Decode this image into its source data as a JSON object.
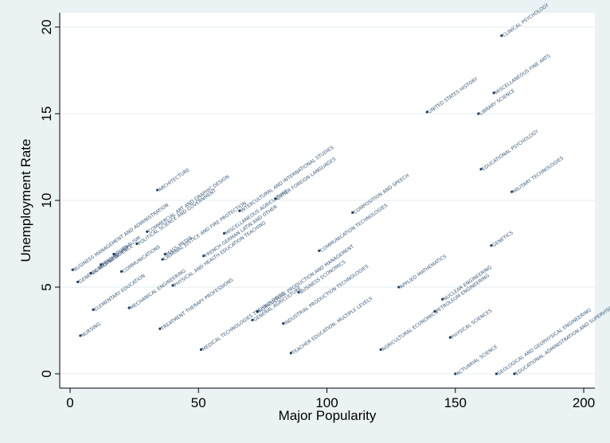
{
  "chart_data": {
    "type": "scatter",
    "title": "",
    "xlabel": "Major Popularity",
    "ylabel": "Unemployment Rate",
    "xlim": [
      0,
      200
    ],
    "ylim": [
      0,
      20
    ],
    "xticks": [
      "0",
      "50",
      "100",
      "150",
      "200"
    ],
    "yticks": [
      "0",
      "5",
      "10",
      "15",
      "20"
    ],
    "grid": true,
    "legend": "none",
    "point_color": "#1f3d5c",
    "background_outer": "#eaf2f3",
    "background_plot": "#ffffff",
    "points": [
      {
        "x": 1,
        "y": 6.0,
        "label": "BUSINESS MANAGEMENT AND ADMINISTRATION"
      },
      {
        "x": 3,
        "y": 5.3,
        "label": "GENERAL BUSINESS"
      },
      {
        "x": 4,
        "y": 2.2,
        "label": "NURSING"
      },
      {
        "x": 8,
        "y": 5.8,
        "label": "COMPUTER SCIENCE"
      },
      {
        "x": 9,
        "y": 3.7,
        "label": "ELEMENTARY EDUCATION"
      },
      {
        "x": 12,
        "y": 6.3,
        "label": "PSYCHOLOGY"
      },
      {
        "x": 17,
        "y": 6.9,
        "label": "JOURNALISM"
      },
      {
        "x": 20,
        "y": 5.9,
        "label": "COMMUNICATIONS"
      },
      {
        "x": 23,
        "y": 3.8,
        "label": "MECHANICAL ENGINEERING"
      },
      {
        "x": 26,
        "y": 7.5,
        "label": "POLITICAL SCIENCE AND GOVERNMENT"
      },
      {
        "x": 30,
        "y": 8.2,
        "label": "COMMERCIAL ART AND GRAPHIC DESIGN"
      },
      {
        "x": 34,
        "y": 10.6,
        "label": "ARCHITECTURE"
      },
      {
        "x": 35,
        "y": 2.6,
        "label": "TREATMENT THERAPY PROFESSIONS"
      },
      {
        "x": 36,
        "y": 6.6,
        "label": "CRIMINAL JUSTICE AND FIRE PROTECTION"
      },
      {
        "x": 37,
        "y": 6.9,
        "label": "MASS MEDIA"
      },
      {
        "x": 40,
        "y": 5.1,
        "label": "PHYSICAL AND HEALTH EDUCATION TEACHING"
      },
      {
        "x": 51,
        "y": 1.4,
        "label": "MEDICAL TECHNOLOGIES TECHNOLOGIES"
      },
      {
        "x": 52,
        "y": 6.8,
        "label": "FRENCH GERMAN LATIN AND OTHER"
      },
      {
        "x": 60,
        "y": 8.1,
        "label": "MISCELLANEOUS AGRICULTURE"
      },
      {
        "x": 66,
        "y": 9.4,
        "label": "INTERCULTURAL AND INTERNATIONAL STUDIES"
      },
      {
        "x": 71,
        "y": 3.1,
        "label": "GENERAL AGRICULTURE"
      },
      {
        "x": 73,
        "y": 3.6,
        "label": "AGRICULTURE PRODUCTION AND MANAGEMENT"
      },
      {
        "x": 80,
        "y": 10.1,
        "label": "OTHER FOREIGN LANGUAGES"
      },
      {
        "x": 83,
        "y": 2.9,
        "label": "INDUSTRIAL PRODUCTION TECHNOLOGIES"
      },
      {
        "x": 86,
        "y": 1.2,
        "label": "TEACHER EDUCATION: MULTIPLE LEVELS"
      },
      {
        "x": 89,
        "y": 4.7,
        "label": "BUSINESS ECONOMICS"
      },
      {
        "x": 97,
        "y": 7.1,
        "label": "COMMUNICATION TECHNOLOGIES"
      },
      {
        "x": 110,
        "y": 9.3,
        "label": "COMPOSITION AND SPEECH"
      },
      {
        "x": 121,
        "y": 1.4,
        "label": "AGRICULTURAL ECONOMICS"
      },
      {
        "x": 128,
        "y": 5.0,
        "label": "APPLIED MATHEMATICS"
      },
      {
        "x": 139,
        "y": 15.1,
        "label": "UNITED STATES HISTORY"
      },
      {
        "x": 142,
        "y": 3.6,
        "label": "PETROLEUM ENGINEERING"
      },
      {
        "x": 145,
        "y": 4.3,
        "label": "NUCLEAR ENGINEERING"
      },
      {
        "x": 148,
        "y": 2.1,
        "label": "PHYSICAL SCIENCES"
      },
      {
        "x": 150,
        "y": 0.0,
        "label": "ACTUARIAL SCIENCE"
      },
      {
        "x": 159,
        "y": 15.0,
        "label": "LIBRARY SCIENCE"
      },
      {
        "x": 160,
        "y": 11.8,
        "label": "EDUCATIONAL PSYCHOLOGY"
      },
      {
        "x": 164,
        "y": 7.4,
        "label": "GENETICS"
      },
      {
        "x": 165,
        "y": 16.2,
        "label": "MISCELLANEOUS FINE ARTS"
      },
      {
        "x": 166,
        "y": 0.0,
        "label": "GEOLOGICAL AND GEOPHYSICAL ENGINEERING"
      },
      {
        "x": 168,
        "y": 19.5,
        "label": "CLINICAL PSYCHOLOGY"
      },
      {
        "x": 172,
        "y": 10.5,
        "label": "MILITARY TECHNOLOGIES"
      },
      {
        "x": 173,
        "y": 0.0,
        "label": "EDUCATIONAL ADMINISTRATION AND SUPERVISION"
      }
    ]
  }
}
